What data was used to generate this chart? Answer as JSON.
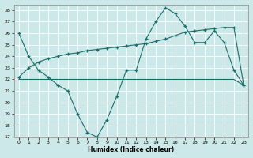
{
  "xlabel": "Humidex (Indice chaleur)",
  "background_color": "#cce8e8",
  "grid_color": "#ffffff",
  "line_color": "#1a6e6a",
  "xlim": [
    -0.5,
    23.5
  ],
  "ylim": [
    17,
    28.5
  ],
  "yticks": [
    17,
    18,
    19,
    20,
    21,
    22,
    23,
    24,
    25,
    26,
    27,
    28
  ],
  "xticks": [
    0,
    1,
    2,
    3,
    4,
    5,
    6,
    7,
    8,
    9,
    10,
    11,
    12,
    13,
    14,
    15,
    16,
    17,
    18,
    19,
    20,
    21,
    22,
    23
  ],
  "line1_x": [
    0,
    1,
    2,
    3,
    4,
    5,
    6,
    7,
    8,
    9,
    10,
    11,
    12,
    13,
    14,
    15,
    16,
    17,
    18,
    19,
    20,
    21,
    22,
    23
  ],
  "line1_y": [
    26.0,
    24.0,
    22.8,
    22.2,
    21.5,
    21.0,
    19.0,
    17.4,
    17.0,
    18.5,
    20.5,
    22.8,
    22.8,
    25.5,
    27.0,
    28.2,
    27.7,
    26.6,
    25.2,
    25.2,
    26.2,
    25.2,
    22.8,
    21.5
  ],
  "line2_x": [
    0,
    3,
    10,
    14,
    15,
    16,
    17,
    18,
    19,
    20,
    21,
    22,
    23
  ],
  "line2_y": [
    22.0,
    22.0,
    22.0,
    22.0,
    22.0,
    22.0,
    22.0,
    22.0,
    22.0,
    22.0,
    22.0,
    22.0,
    21.5
  ],
  "line3_x": [
    0,
    1,
    2,
    3,
    4,
    5,
    6,
    7,
    8,
    9,
    10,
    11,
    12,
    13,
    14,
    15,
    16,
    17,
    18,
    19,
    20,
    21,
    22,
    23
  ],
  "line3_y": [
    22.2,
    23.0,
    23.5,
    23.8,
    24.0,
    24.2,
    24.3,
    24.5,
    24.6,
    24.7,
    24.8,
    24.9,
    25.0,
    25.1,
    25.3,
    25.5,
    25.8,
    26.1,
    26.2,
    26.3,
    26.4,
    26.5,
    26.5,
    21.5
  ]
}
